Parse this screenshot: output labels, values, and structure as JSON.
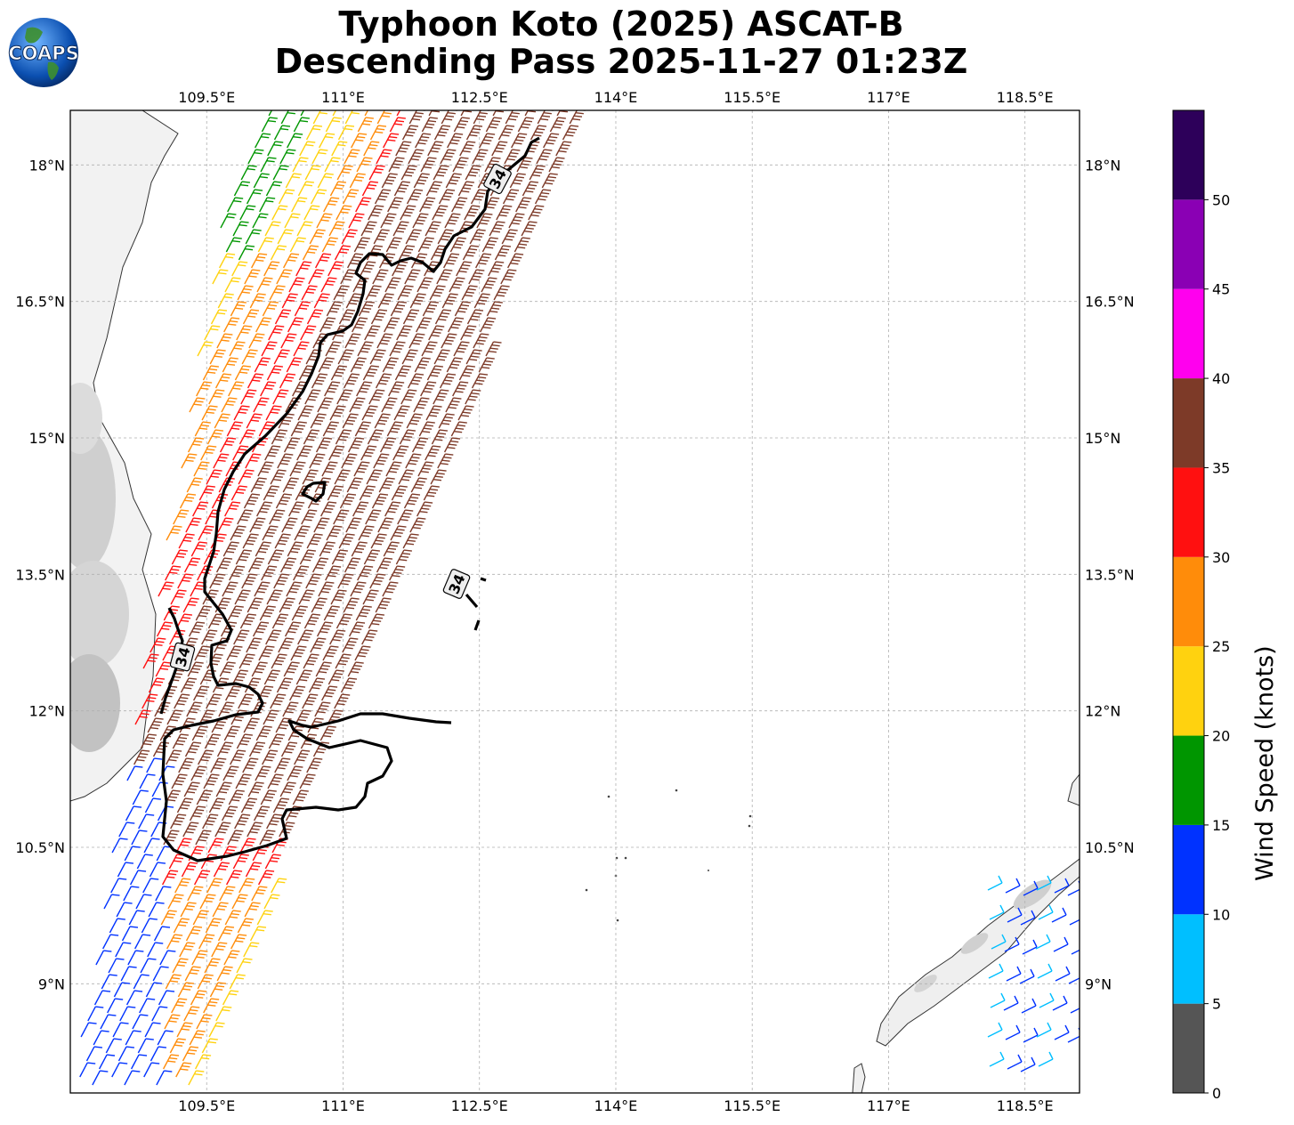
{
  "header": {
    "title_line1": "Typhoon Koto (2025) ASCAT-B",
    "title_line2": "Descending Pass 2025-11-27 01:23Z",
    "logo_text": "COAPS"
  },
  "map": {
    "lon_range": [
      108.0,
      119.1
    ],
    "lat_range": [
      7.8,
      18.6
    ],
    "lon_ticks": [
      "109.5°E",
      "111°E",
      "112.5°E",
      "114°E",
      "115.5°E",
      "117°E",
      "118.5°E"
    ],
    "lat_ticks": [
      "18°N",
      "16.5°N",
      "15°N",
      "13.5°N",
      "12°N",
      "10.5°N",
      "9°N"
    ],
    "grid": true,
    "contour_label": "34",
    "contour_level_knots": 34
  },
  "colorbar": {
    "label": "Wind Speed (knots)",
    "ticks": [
      "0",
      "5",
      "10",
      "15",
      "20",
      "25",
      "30",
      "35",
      "40",
      "45",
      "50"
    ],
    "bins": [
      {
        "min": 0,
        "max": 5,
        "color": "#555555"
      },
      {
        "min": 5,
        "max": 10,
        "color": "#00bfff"
      },
      {
        "min": 10,
        "max": 15,
        "color": "#0032ff"
      },
      {
        "min": 15,
        "max": 20,
        "color": "#009600"
      },
      {
        "min": 20,
        "max": 25,
        "color": "#ffd20f"
      },
      {
        "min": 25,
        "max": 30,
        "color": "#ff8c0a"
      },
      {
        "min": 30,
        "max": 35,
        "color": "#ff1010"
      },
      {
        "min": 35,
        "max": 40,
        "color": "#7d3a28"
      },
      {
        "min": 40,
        "max": 45,
        "color": "#ff00ee"
      },
      {
        "min": 45,
        "max": 50,
        "color": "#8a00b4"
      },
      {
        "min": 50,
        "max": 55,
        "color": "#2d005a"
      }
    ]
  }
}
